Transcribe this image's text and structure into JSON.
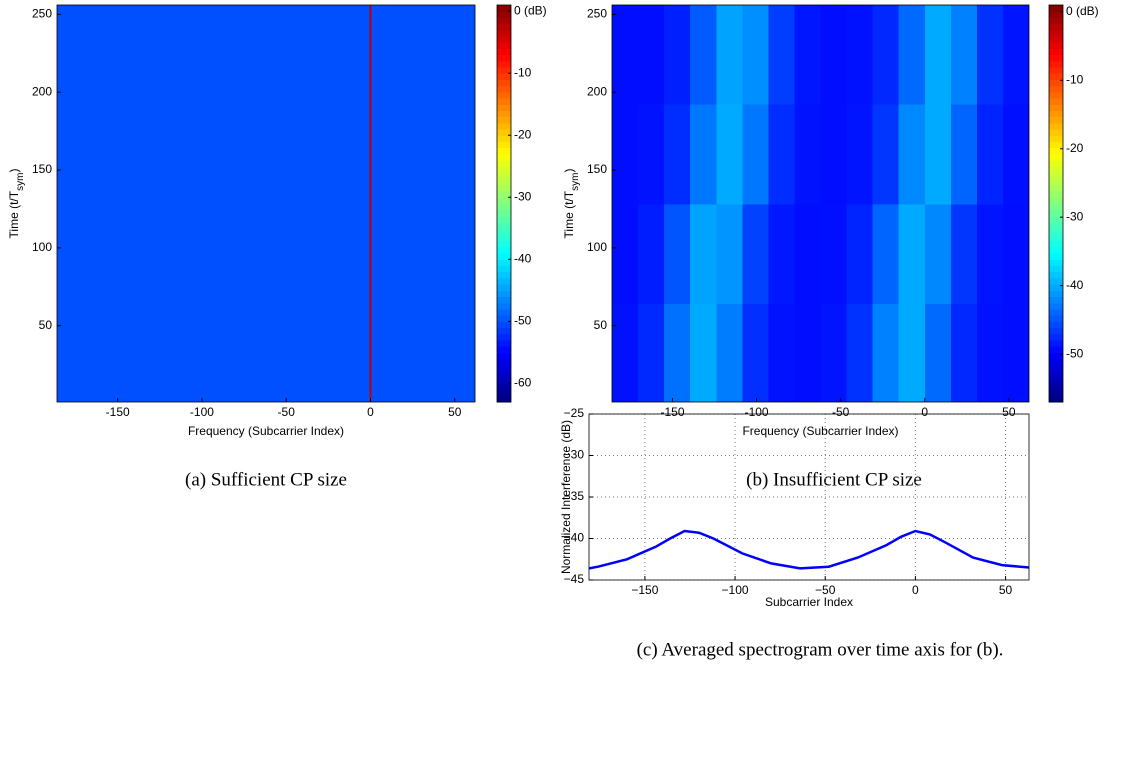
{
  "chart_data": [
    {
      "type": "heatmap",
      "caption": "(a) Sufficient CP size",
      "xlabel": "Frequency (Subcarrier Index)",
      "ylabel_parts": [
        "Time (t/T",
        "sym",
        ")"
      ],
      "xlim": [
        -186,
        62
      ],
      "ylim": [
        1,
        256
      ],
      "xticks": [
        -150,
        -100,
        -50,
        0,
        50
      ],
      "yticks": [
        50,
        100,
        150,
        200,
        250
      ],
      "colormap": "jet",
      "zlim": [
        -63,
        1
      ],
      "zticks": [
        {
          "value": 0,
          "label": "0 (dB)"
        },
        -10,
        -20,
        -30,
        -40,
        -50,
        -60
      ],
      "x_edges": [
        -186,
        -0.5,
        0.5,
        62
      ],
      "y_edges": [
        1,
        256
      ],
      "z": [
        [
          -50,
          -3,
          -50
        ]
      ]
    },
    {
      "type": "heatmap",
      "caption": "(b) Insufficient CP size",
      "xlabel": "Frequency (Subcarrier Index)",
      "ylabel_parts": [
        "Time (t/T",
        "sym",
        ")"
      ],
      "xlim": [
        -186,
        62
      ],
      "ylim": [
        1,
        256
      ],
      "xticks": [
        -150,
        -100,
        -50,
        0,
        50
      ],
      "yticks": [
        50,
        100,
        150,
        200,
        250
      ],
      "colormap": "jet",
      "zlim": [
        -57,
        1
      ],
      "zticks": [
        {
          "value": 0,
          "label": "0 (dB)"
        },
        -10,
        -20,
        -30,
        -40,
        -50
      ],
      "x_edges": [
        -186,
        -170.5,
        -155,
        -139.5,
        -124,
        -108.5,
        -93,
        -77.5,
        -62,
        -46.5,
        -31,
        -15.5,
        0,
        15.5,
        31,
        46.5,
        62
      ],
      "y_edges": [
        1,
        64,
        128,
        192,
        256
      ],
      "z": [
        [
          -48.8,
          -47.4,
          -43.3,
          -40,
          -42.7,
          -47.1,
          -48.7,
          -49,
          -48.6,
          -46.9,
          -42.4,
          -40.1,
          -43.7,
          -47.5,
          -48.8,
          -49
        ],
        [
          -49,
          -48.1,
          -44.9,
          -40.5,
          -41.3,
          -46,
          -48.4,
          -49,
          -48.9,
          -47.7,
          -44,
          -40.1,
          -42,
          -46.7,
          -48.6,
          -49
        ],
        [
          -49,
          -48.7,
          -47.2,
          -43,
          -40,
          -43,
          -47.2,
          -48.7,
          -49,
          -48.6,
          -46.7,
          -42,
          -40.1,
          -44,
          -47.7,
          -48.9
        ],
        [
          -49,
          -49,
          -48,
          -44.6,
          -40.4,
          -41.6,
          -46.2,
          -48.5,
          -49,
          -48.8,
          -47.5,
          -43.7,
          -40.1,
          -42.4,
          -46.9,
          -48.6
        ]
      ]
    },
    {
      "type": "line",
      "caption": "(c) Averaged spectrogram over time axis for (b).",
      "xlabel": "Subcarrier Index",
      "ylabel": "Normalized Interference (dB)",
      "xlim": [
        -181,
        63
      ],
      "ylim": [
        -45,
        -25
      ],
      "xticks": [
        {
          "value": -150,
          "label": "−150"
        },
        {
          "value": -100,
          "label": "−100"
        },
        {
          "value": -50,
          "label": "−50"
        },
        0,
        50
      ],
      "yticks": [
        {
          "value": -45,
          "label": "−45"
        },
        {
          "value": -40,
          "label": "−40"
        },
        {
          "value": -35,
          "label": "−35"
        },
        {
          "value": -30,
          "label": "−30"
        },
        {
          "value": -25,
          "label": "−25"
        }
      ],
      "grid": true,
      "color": "#0000ff",
      "x": [
        -181,
        -176,
        -160,
        -144,
        -136,
        -128,
        -120,
        -112,
        -96,
        -80,
        -64,
        -48,
        -32,
        -16,
        -8,
        0,
        8,
        16,
        32,
        48,
        63
      ],
      "values": [
        -43.6,
        -43.4,
        -42.5,
        -41,
        -40,
        -39.1,
        -39.3,
        -40,
        -41.8,
        -43,
        -43.6,
        -43.4,
        -42.3,
        -40.8,
        -39.8,
        -39.1,
        -39.5,
        -40.4,
        -42.3,
        -43.2,
        -43.5
      ]
    }
  ]
}
